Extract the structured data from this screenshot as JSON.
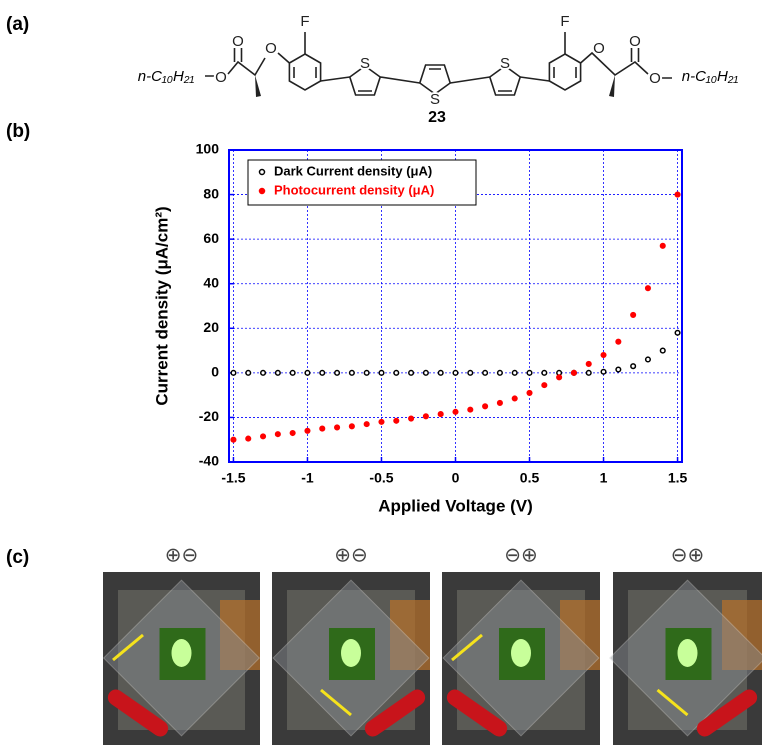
{
  "panels": {
    "a": "(a)",
    "b": "(b)",
    "c": "(c)"
  },
  "molecule": {
    "left_chain": "n-C₁₀H₂₁",
    "right_chain": "n-C₁₀H₂₁",
    "compound_number": "23",
    "atoms": [
      "O",
      "O",
      "O",
      "F",
      "S",
      "S",
      "S",
      "F",
      "O",
      "O",
      "O"
    ]
  },
  "chart_data": {
    "type": "scatter",
    "x_label": "Applied Voltage (V)",
    "y_label": "Current density (μA/cm²)",
    "x": [
      -1.5,
      -1.4,
      -1.3,
      -1.2,
      -1.1,
      -1.0,
      -0.9,
      -0.8,
      -0.7,
      -0.6,
      -0.5,
      -0.4,
      -0.3,
      -0.2,
      -0.1,
      0,
      0.1,
      0.2,
      0.3,
      0.4,
      0.5,
      0.6,
      0.7,
      0.8,
      0.9,
      1.0,
      1.1,
      1.2,
      1.3,
      1.4,
      1.5
    ],
    "series": [
      {
        "name": "Dark Current density (μA)",
        "color": "#000000",
        "values": [
          0,
          0,
          0,
          0,
          0,
          0,
          0,
          0,
          0,
          0,
          0,
          0,
          0,
          0,
          0,
          0,
          0,
          0,
          0,
          0,
          0,
          0,
          0,
          0,
          0,
          0.5,
          1.5,
          3,
          6,
          10,
          18
        ]
      },
      {
        "name": "Photocurrent density (μA)",
        "color": "#ff0000",
        "values": [
          -30,
          -29.5,
          -28.5,
          -27.5,
          -27,
          -26,
          -25,
          -24.5,
          -24,
          -23,
          -22,
          -21.5,
          -20.5,
          -19.5,
          -18.5,
          -17.5,
          -16.5,
          -15,
          -13.5,
          -11.5,
          -9,
          -5.5,
          -2,
          0,
          4,
          8,
          14,
          26,
          38,
          57,
          80
        ]
      }
    ],
    "xlim": [
      -1.53,
      1.53
    ],
    "ylim": [
      -40,
      100
    ],
    "xticks": [
      -1.5,
      -1,
      -0.5,
      0,
      0.5,
      1,
      1.5
    ],
    "yticks": [
      -40,
      -20,
      0,
      20,
      40,
      60,
      80,
      100
    ],
    "grid": true,
    "frame_color": "#0000ff",
    "legend": "upper left"
  },
  "photos": [
    {
      "label": "⊕⊖"
    },
    {
      "label": "⊕⊖"
    },
    {
      "label": "⊖⊕"
    },
    {
      "label": "⊖⊕"
    }
  ]
}
